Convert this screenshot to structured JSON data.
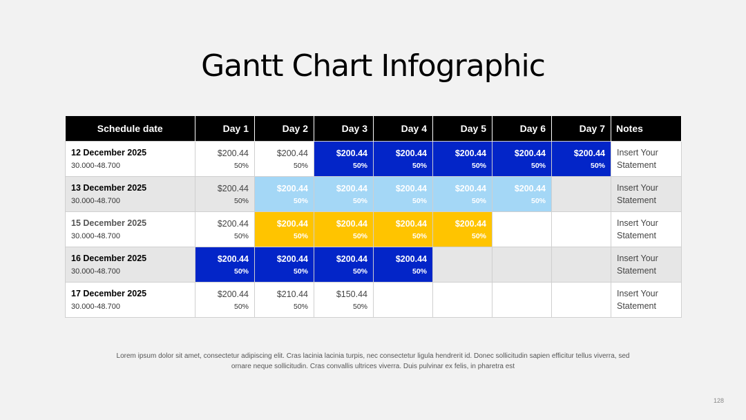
{
  "title": "Gantt Chart Infographic",
  "colors": {
    "blue": "#0325c8",
    "light_blue": "#a4d7f6",
    "yellow": "#ffc400",
    "white": "#ffffff",
    "grey": "#e6e6e6"
  },
  "headers": [
    "Schedule date",
    "Day 1",
    "Day 2",
    "Day 3",
    "Day 4",
    "Day 5",
    "Day 6",
    "Day 7",
    "Notes"
  ],
  "rows": [
    {
      "date": "12 December 2025",
      "sub": "30.000-48.700",
      "notes": "Insert Your Statement",
      "cells": [
        {
          "amount": "$200.44",
          "pct": "50%",
          "color": "white"
        },
        {
          "amount": "$200.44",
          "pct": "50%",
          "color": "white"
        },
        {
          "amount": "$200.44",
          "pct": "50%",
          "color": "blue"
        },
        {
          "amount": "$200.44",
          "pct": "50%",
          "color": "blue"
        },
        {
          "amount": "$200.44",
          "pct": "50%",
          "color": "blue"
        },
        {
          "amount": "$200.44",
          "pct": "50%",
          "color": "blue"
        },
        {
          "amount": "$200.44",
          "pct": "50%",
          "color": "blue"
        }
      ]
    },
    {
      "date": "13 December 2025",
      "sub": "30.000-48.700",
      "notes": "Insert Your Statement",
      "cells": [
        {
          "amount": "$200.44",
          "pct": "50%",
          "color": "grey"
        },
        {
          "amount": "$200.44",
          "pct": "50%",
          "color": "light_blue"
        },
        {
          "amount": "$200.44",
          "pct": "50%",
          "color": "light_blue"
        },
        {
          "amount": "$200.44",
          "pct": "50%",
          "color": "light_blue"
        },
        {
          "amount": "$200.44",
          "pct": "50%",
          "color": "light_blue"
        },
        {
          "amount": "$200.44",
          "pct": "50%",
          "color": "light_blue"
        },
        {
          "amount": "",
          "pct": "",
          "color": "grey"
        }
      ]
    },
    {
      "date": "15 December 2025",
      "sub": "30.000-48.700",
      "notes": "Insert Your Statement",
      "cells": [
        {
          "amount": "$200.44",
          "pct": "50%",
          "color": "white"
        },
        {
          "amount": "$200.44",
          "pct": "50%",
          "color": "yellow"
        },
        {
          "amount": "$200.44",
          "pct": "50%",
          "color": "yellow"
        },
        {
          "amount": "$200.44",
          "pct": "50%",
          "color": "yellow"
        },
        {
          "amount": "$200.44",
          "pct": "50%",
          "color": "yellow"
        },
        {
          "amount": "",
          "pct": "",
          "color": "white"
        },
        {
          "amount": "",
          "pct": "",
          "color": "white"
        }
      ]
    },
    {
      "date": "16 December 2025",
      "sub": "30.000-48.700",
      "notes": "Insert Your Statement",
      "cells": [
        {
          "amount": "$200.44",
          "pct": "50%",
          "color": "blue"
        },
        {
          "amount": "$200.44",
          "pct": "50%",
          "color": "blue"
        },
        {
          "amount": "$200.44",
          "pct": "50%",
          "color": "blue"
        },
        {
          "amount": "$200.44",
          "pct": "50%",
          "color": "blue"
        },
        {
          "amount": "",
          "pct": "",
          "color": "grey"
        },
        {
          "amount": "",
          "pct": "",
          "color": "grey"
        },
        {
          "amount": "",
          "pct": "",
          "color": "grey"
        }
      ]
    },
    {
      "date": "17 December 2025",
      "sub": "30.000-48.700",
      "notes": "Insert Your Statement",
      "cells": [
        {
          "amount": "$200.44",
          "pct": "50%",
          "color": "white"
        },
        {
          "amount": "$210.44",
          "pct": "50%",
          "color": "white"
        },
        {
          "amount": "$150.44",
          "pct": "50%",
          "color": "white"
        },
        {
          "amount": "",
          "pct": "",
          "color": "white"
        },
        {
          "amount": "",
          "pct": "",
          "color": "white"
        },
        {
          "amount": "",
          "pct": "",
          "color": "white"
        },
        {
          "amount": "",
          "pct": "",
          "color": "white"
        }
      ]
    }
  ],
  "footer": "Lorem ipsum dolor sit amet, consectetur adipiscing elit. Cras lacinia lacinia turpis, nec consectetur ligula hendrerit id. Donec sollicitudin sapien efficitur tellus viverra, sed ornare neque sollicitudin. Cras convallis ultrices viverra. Duis pulvinar ex felis, in pharetra est",
  "page_number": "128"
}
